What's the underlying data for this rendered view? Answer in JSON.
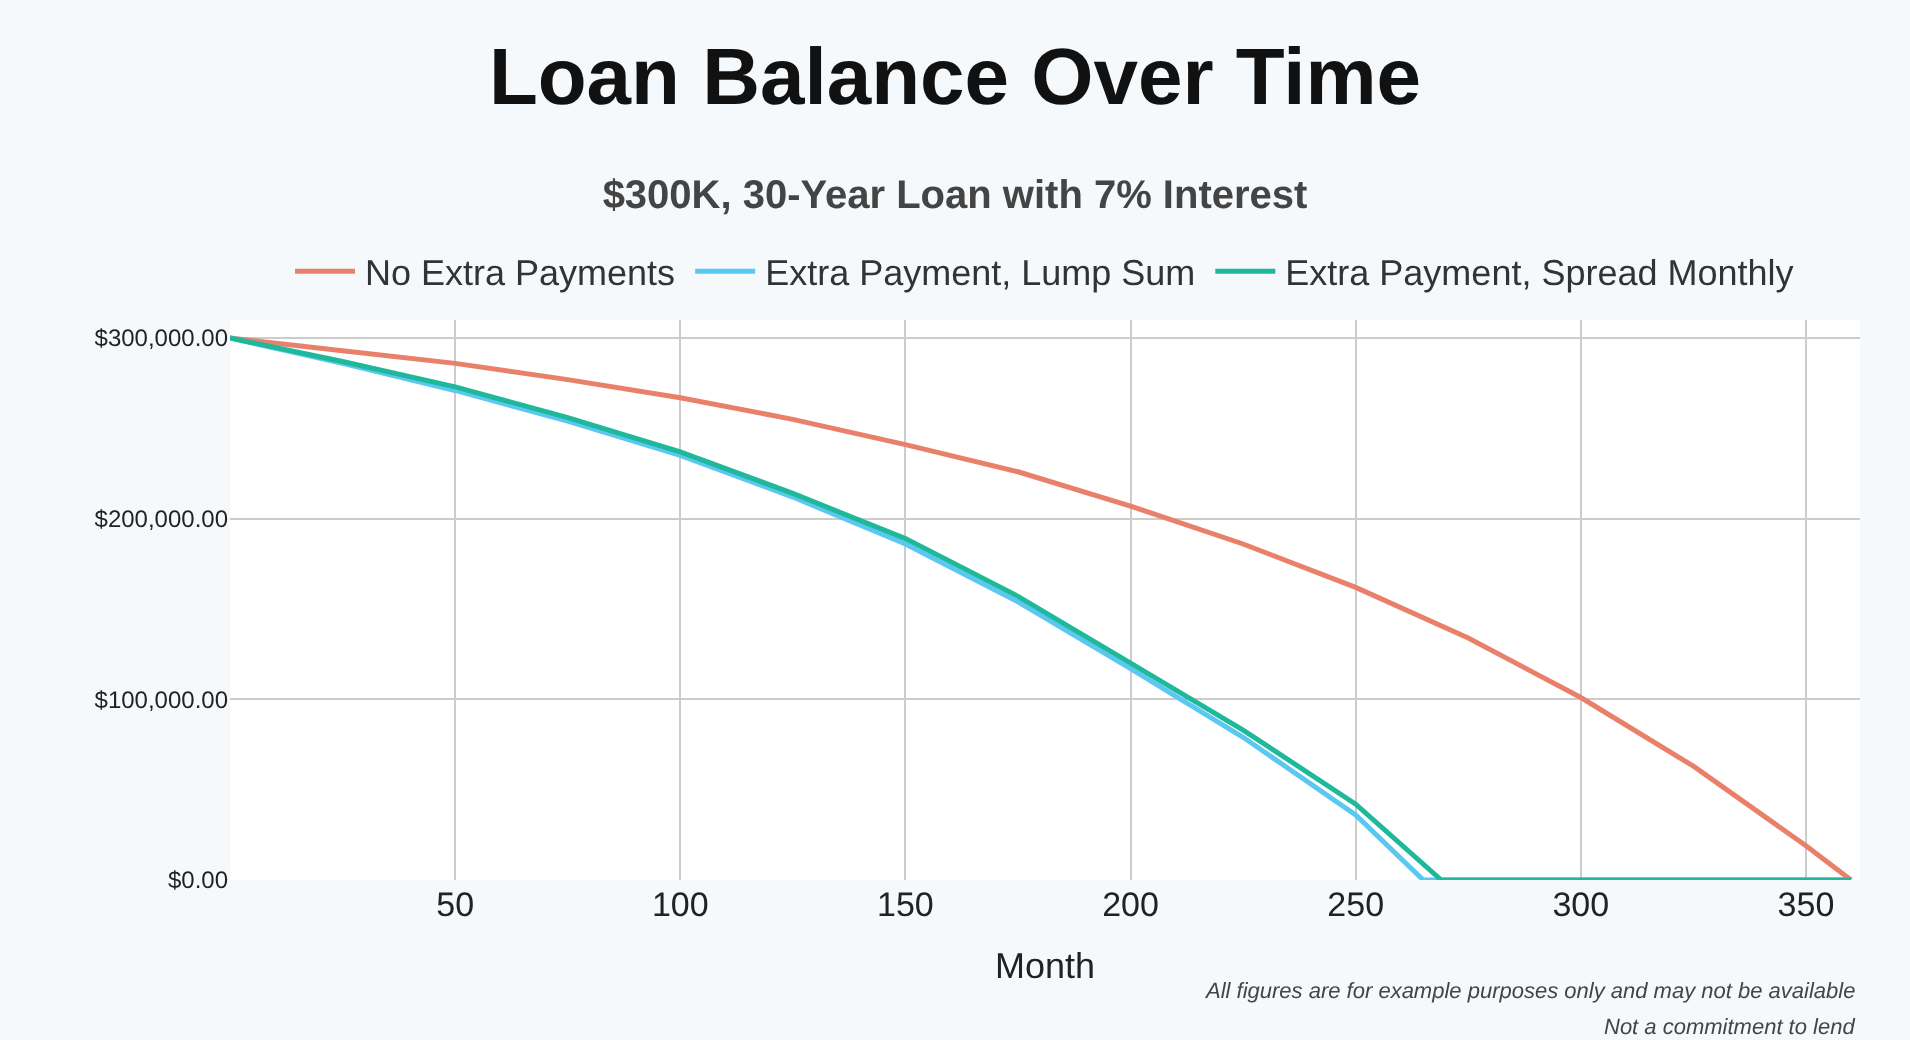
{
  "chart_data": {
    "type": "line",
    "title": "Loan Balance Over Time",
    "subtitle": "$300K, 30-Year Loan with 7% Interest",
    "xlabel": "Month",
    "xlim": [
      0,
      362
    ],
    "xticks": [
      50,
      100,
      150,
      200,
      250,
      300,
      350
    ],
    "ylim": [
      0,
      310000
    ],
    "yticks": [
      {
        "value": 0,
        "label": "$0.00"
      },
      {
        "value": 100000,
        "label": "$100,000.00"
      },
      {
        "value": 200000,
        "label": "$200,000.00"
      },
      {
        "value": 300000,
        "label": "$300,000.00"
      }
    ],
    "grid": true,
    "legend": "top",
    "marker": "none",
    "line_style": "solid",
    "series": [
      {
        "name": "No Extra Payments",
        "color": "#e8806a",
        "x": [
          0,
          25,
          50,
          75,
          100,
          125,
          150,
          175,
          200,
          225,
          250,
          275,
          300,
          325,
          350,
          360
        ],
        "values": [
          300000,
          293000,
          286000,
          277000,
          267000,
          255000,
          241000,
          226000,
          207000,
          186000,
          162000,
          134000,
          101000,
          63000,
          19000,
          0
        ]
      },
      {
        "name": "Extra Payment, Lump Sum",
        "color": "#5ac8f0",
        "x": [
          0,
          25,
          50,
          75,
          100,
          125,
          150,
          175,
          200,
          225,
          250,
          265,
          300,
          360
        ],
        "values": [
          300000,
          286000,
          271000,
          254000,
          235000,
          212000,
          186000,
          154000,
          117000,
          79000,
          36000,
          0,
          0,
          0
        ]
      },
      {
        "name": "Extra Payment, Spread Monthly",
        "color": "#1fb89a",
        "x": [
          0,
          25,
          50,
          75,
          100,
          125,
          150,
          175,
          200,
          225,
          250,
          269,
          300,
          360
        ],
        "values": [
          300000,
          287000,
          273000,
          256000,
          237000,
          214000,
          189000,
          157000,
          120000,
          83000,
          42000,
          0,
          0,
          0
        ]
      }
    ],
    "annotations": [
      "All figures are for example purposes only and may not be available",
      "Not a commitment to lend"
    ]
  }
}
